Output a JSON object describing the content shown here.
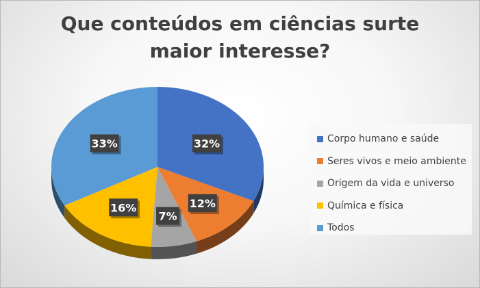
{
  "chart_data": {
    "type": "pie",
    "title_lines": [
      "Que conteúdos em ciências surte",
      "maior interesse?"
    ],
    "categories": [
      "Corpo humano e saúde",
      "Seres vivos e meio ambiente",
      "Origem da vida e universo",
      "Química e física",
      "Todos"
    ],
    "values": [
      32,
      12,
      7,
      16,
      33
    ],
    "labels": [
      "32%",
      "12%",
      "7%",
      "16%",
      "33%"
    ],
    "colors": [
      "#4472c4",
      "#ed7d31",
      "#a5a5a5",
      "#ffc000",
      "#5b9bd5"
    ],
    "legend_position": "right",
    "style": "3d"
  }
}
